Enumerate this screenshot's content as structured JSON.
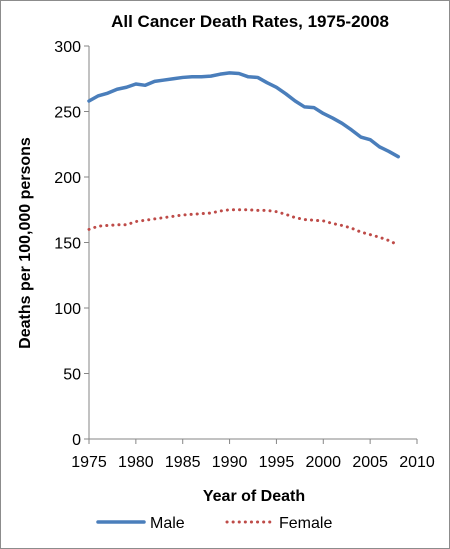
{
  "chart_data": {
    "type": "line",
    "title": "All Cancer Death Rates, 1975-2008",
    "xlabel": "Year of Death",
    "ylabel": "Deaths per 100,000 persons",
    "xlim": [
      1975,
      2010
    ],
    "ylim": [
      0,
      300
    ],
    "xticks": [
      1975,
      1980,
      1985,
      1990,
      1995,
      2000,
      2005,
      2010
    ],
    "yticks": [
      0,
      50,
      100,
      150,
      200,
      250,
      300
    ],
    "grid": false,
    "legend_position": "bottom",
    "x": [
      1975,
      1976,
      1977,
      1978,
      1979,
      1980,
      1981,
      1982,
      1983,
      1984,
      1985,
      1986,
      1987,
      1988,
      1989,
      1990,
      1991,
      1992,
      1993,
      1994,
      1995,
      1996,
      1997,
      1998,
      1999,
      2000,
      2001,
      2002,
      2003,
      2004,
      2005,
      2006,
      2007,
      2008
    ],
    "series": [
      {
        "name": "Male",
        "color": "#4a7ebb",
        "style": "solid",
        "values": [
          258,
          262,
          264,
          267,
          268.5,
          271,
          270,
          273,
          274,
          275,
          276,
          276.5,
          276.5,
          277,
          278.5,
          279.5,
          279,
          276.5,
          276,
          272,
          268.5,
          263.5,
          258,
          253.5,
          253,
          248.5,
          245,
          241,
          236,
          230.5,
          228.5,
          223,
          219.5,
          215.5
        ]
      },
      {
        "name": "Female",
        "color": "#be4b48",
        "style": "dotted",
        "values": [
          160,
          162.5,
          163,
          163.5,
          163.5,
          166,
          167,
          168,
          169,
          170,
          171,
          171.5,
          172,
          172.5,
          174,
          175,
          175,
          175,
          174.5,
          174.5,
          173.5,
          171.5,
          169,
          167.5,
          167,
          166.5,
          164.5,
          163,
          161,
          158,
          156,
          154,
          151.5,
          148
        ]
      }
    ]
  }
}
